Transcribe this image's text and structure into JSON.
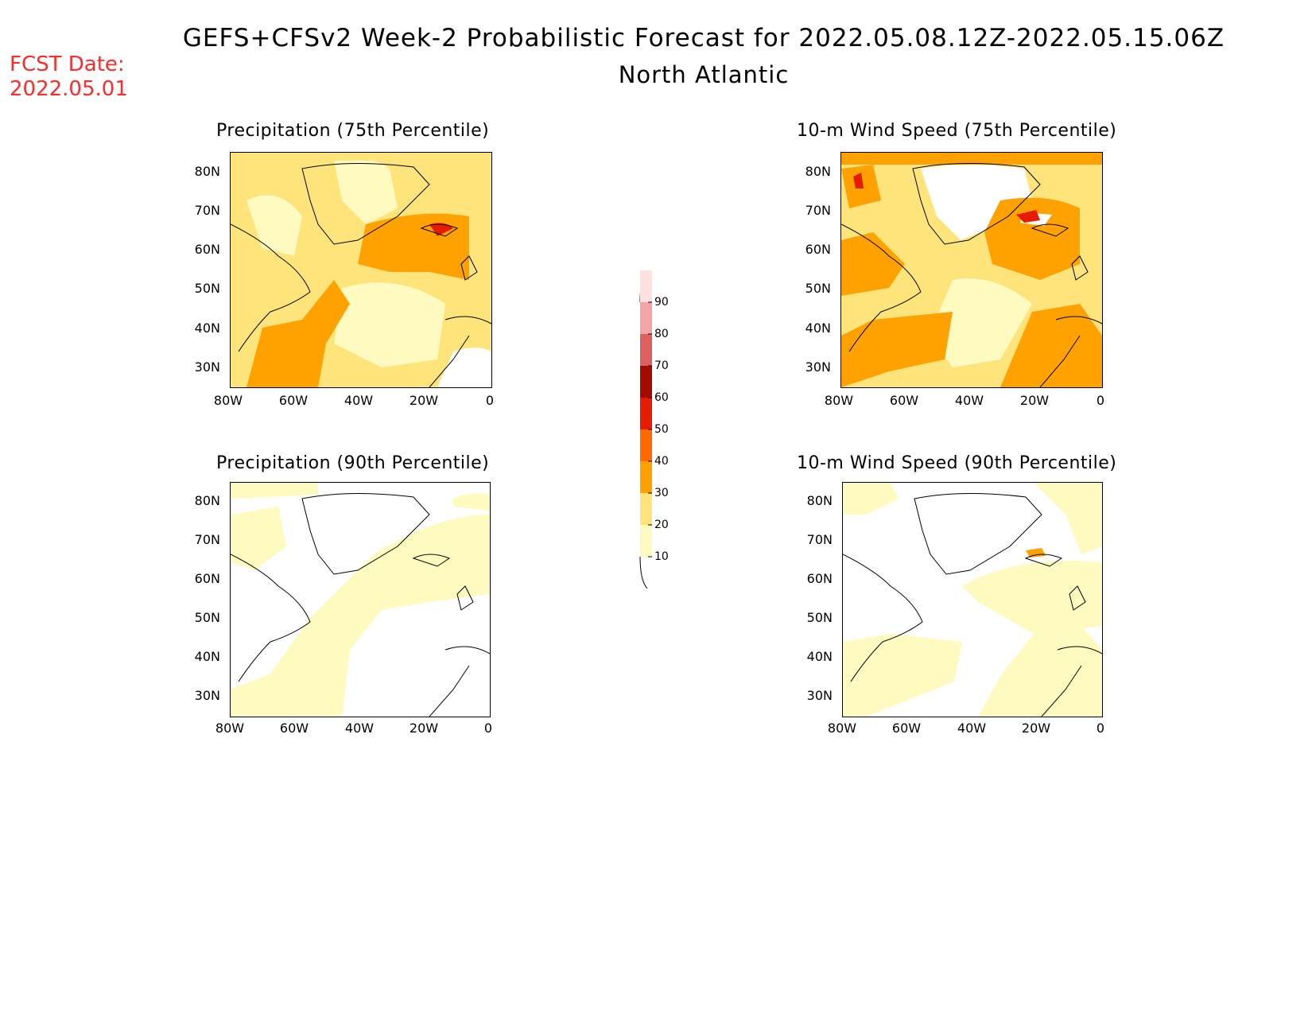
{
  "header": {
    "title": "GEFS+CFSv2 Week-2 Probabilistic Forecast for 2022.05.08.12Z-2022.05.15.06Z",
    "subtitle": "North Atlantic",
    "fcst_line1": "FCST Date:",
    "fcst_line2": "2022.05.01"
  },
  "axes": {
    "lat_labels": [
      "80N",
      "70N",
      "60N",
      "50N",
      "40N",
      "30N"
    ],
    "lon_labels": [
      "80W",
      "60W",
      "40W",
      "20W",
      "0"
    ],
    "lat_range": [
      25,
      85
    ],
    "lon_range": [
      -80,
      0
    ]
  },
  "panels": [
    {
      "title": "Precipitation (75th Percentile)"
    },
    {
      "title": "10-m Wind Speed (75th Percentile)"
    },
    {
      "title": "Precipitation (90th Percentile)"
    },
    {
      "title": "10-m Wind Speed (90th Percentile)"
    }
  ],
  "colorbar": {
    "levels": [
      "10",
      "20",
      "30",
      "40",
      "50",
      "60",
      "70",
      "80",
      "90"
    ],
    "colors": [
      "#fffbc0",
      "#ffe47c",
      "#ffa200",
      "#ff6a00",
      "#e61c00",
      "#a50a00",
      "#dd6060",
      "#f4a4a4",
      "#fde0e0"
    ]
  }
}
